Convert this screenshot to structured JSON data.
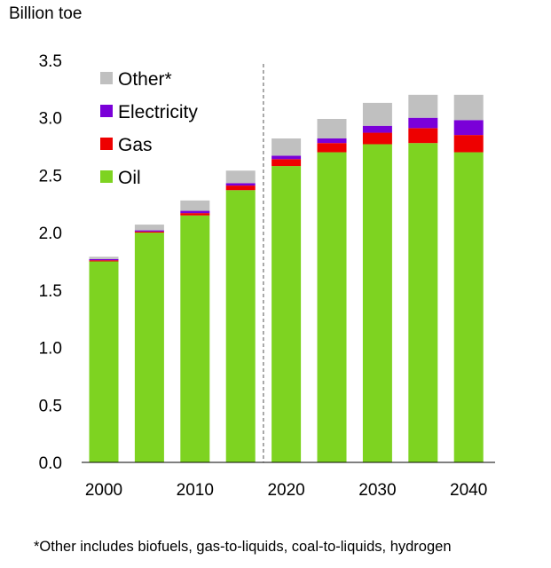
{
  "chart_data": {
    "type": "bar",
    "stacked": true,
    "ylabel": "Billion toe",
    "ylim": [
      0,
      3.5
    ],
    "y_ticks": [
      "0.0",
      "0.5",
      "1.0",
      "1.5",
      "2.0",
      "2.5",
      "3.0",
      "3.5"
    ],
    "y_tick_values": [
      0,
      0.5,
      1.0,
      1.5,
      2.0,
      2.5,
      3.0,
      3.5
    ],
    "categories": [
      2000,
      2005,
      2010,
      2015,
      2020,
      2025,
      2030,
      2035,
      2040
    ],
    "x_tick_labels": [
      "2000",
      "2010",
      "2020",
      "2030",
      "2040"
    ],
    "x_tick_categories": [
      2000,
      2010,
      2020,
      2030,
      2040
    ],
    "divider_after_category": 2015,
    "series": [
      {
        "name": "Oil",
        "color": "#7ed321",
        "values": [
          1.75,
          2.0,
          2.15,
          2.37,
          2.58,
          2.7,
          2.77,
          2.78,
          2.7
        ]
      },
      {
        "name": "Gas",
        "color": "#ee0000",
        "values": [
          0.01,
          0.01,
          0.02,
          0.04,
          0.06,
          0.08,
          0.1,
          0.13,
          0.15
        ]
      },
      {
        "name": "Electricity",
        "color": "#7a00d8",
        "values": [
          0.01,
          0.01,
          0.02,
          0.02,
          0.03,
          0.04,
          0.06,
          0.09,
          0.13
        ]
      },
      {
        "name": "Other*",
        "color": "#c0c0c0",
        "values": [
          0.02,
          0.05,
          0.09,
          0.11,
          0.15,
          0.17,
          0.2,
          0.2,
          0.22
        ]
      }
    ],
    "legend_order": [
      "Other*",
      "Electricity",
      "Gas",
      "Oil"
    ],
    "legend_position": "top-left",
    "footnote": "*Other includes biofuels, gas-to-liquids, coal-to-liquids, hydrogen"
  }
}
